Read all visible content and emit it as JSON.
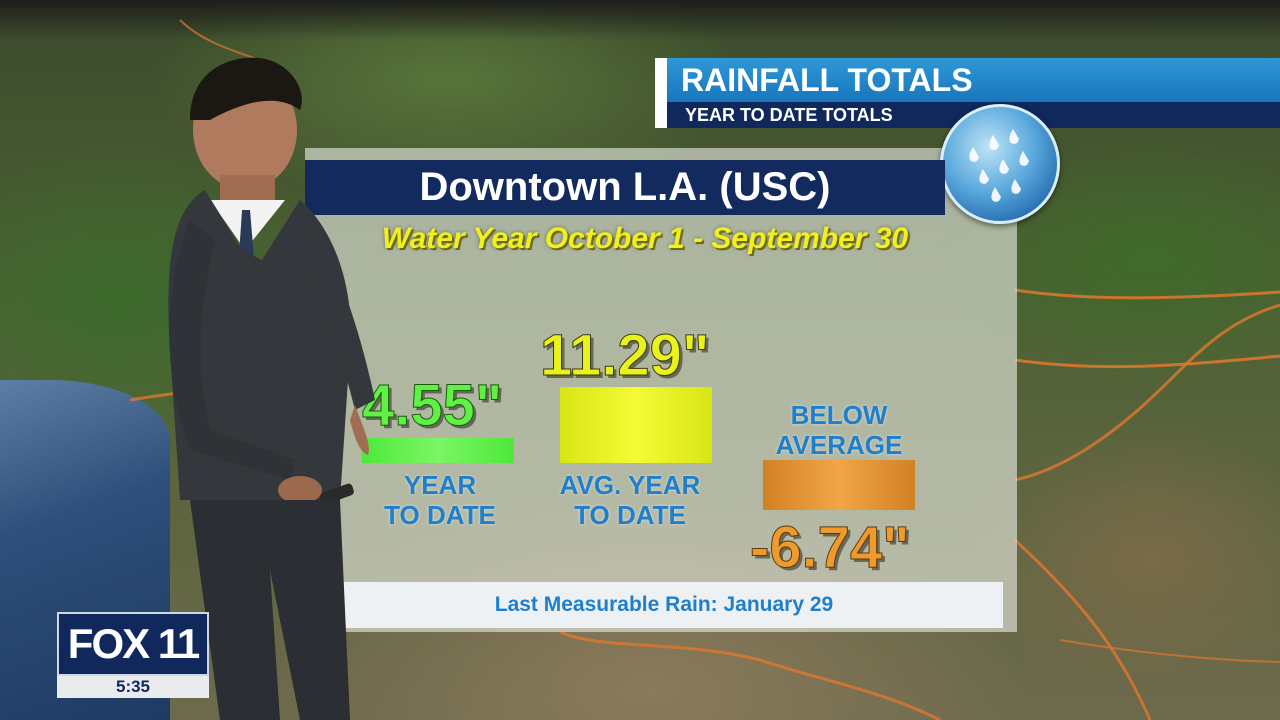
{
  "graphic": {
    "title": "RAINFALL TOTALS",
    "subtitle": "YEAR TO DATE TOTALS",
    "location": "Downtown L.A. (USC)",
    "water_year": "Water Year October 1 - September 30"
  },
  "stats": {
    "year_to_date": {
      "value": "4.55\"",
      "label_line1": "YEAR",
      "label_line2": "TO DATE",
      "color": "#5ff245"
    },
    "avg_year_to_date": {
      "value": "11.29\"",
      "label_line1": "AVG. YEAR",
      "label_line2": "TO DATE",
      "color": "#eaf21c"
    },
    "difference": {
      "value": "-6.74\"",
      "label_line1": "BELOW",
      "label_line2": "AVERAGE",
      "color": "#ee9a2c"
    }
  },
  "footer": {
    "last_rain": "Last Measurable Rain: January 29"
  },
  "station": {
    "logo": "FOX 11",
    "time": "5:35"
  },
  "icons": {
    "badge": "rain-drops-icon"
  },
  "colors": {
    "accent_blue": "#1876bd",
    "navy": "#10285c",
    "label_blue": "#1f7fcb"
  }
}
